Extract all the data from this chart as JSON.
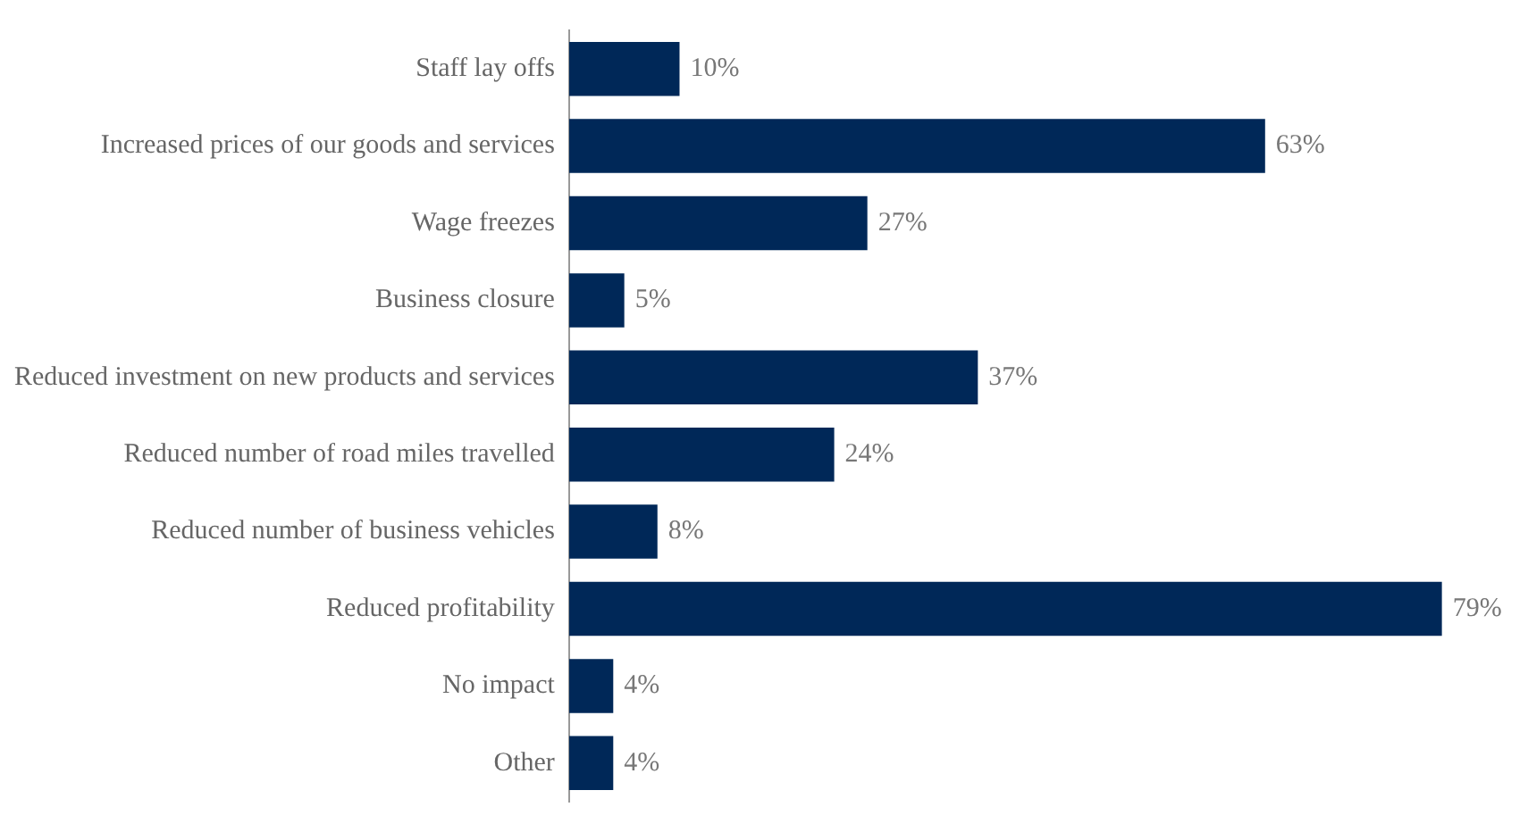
{
  "chart_data": {
    "type": "bar",
    "orientation": "horizontal",
    "categories": [
      "Staff lay offs",
      "Increased prices of our goods and services",
      "Wage freezes",
      "Business closure",
      "Reduced investment on new products and services",
      "Reduced number of road miles travelled",
      "Reduced number of business vehicles",
      "Reduced profitability",
      "No impact",
      "Other"
    ],
    "values": [
      10,
      63,
      27,
      5,
      37,
      24,
      8,
      79,
      4,
      4
    ],
    "value_labels": [
      "10%",
      "63%",
      "27%",
      "5%",
      "37%",
      "24%",
      "8%",
      "79%",
      "4%",
      "4%"
    ],
    "color": "#002858",
    "tick_labels": "y",
    "legend": false
  }
}
